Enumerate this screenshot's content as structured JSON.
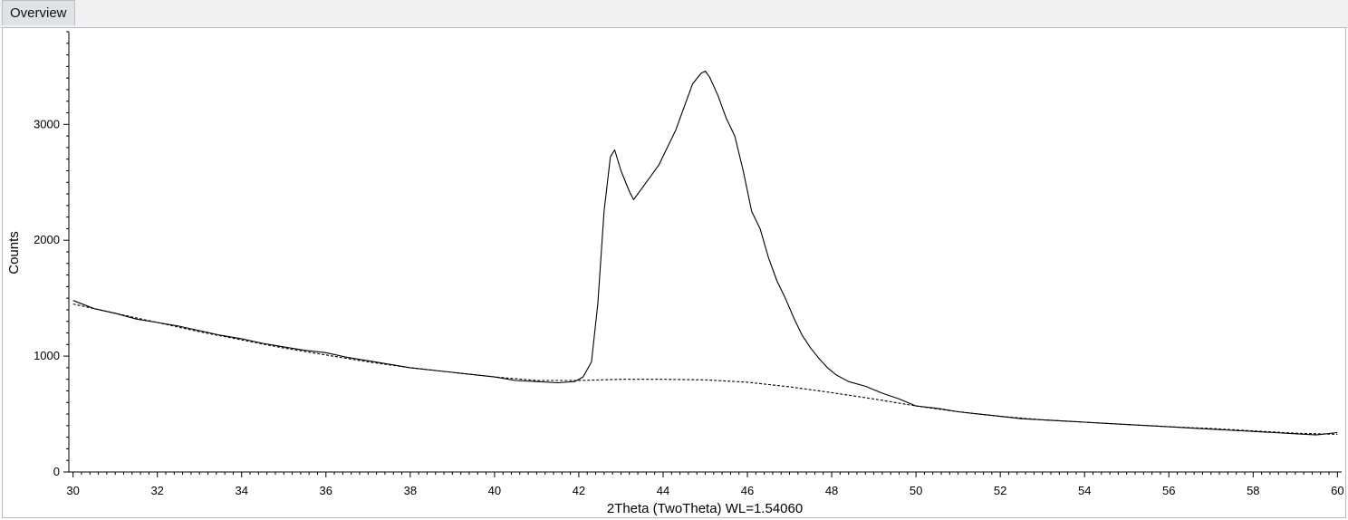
{
  "tabs": [
    {
      "label": "Overview"
    }
  ],
  "chart_data": {
    "type": "line",
    "xlabel": "2Theta (TwoTheta) WL=1.54060",
    "ylabel": "Counts",
    "xlim": [
      29.9,
      60.1
    ],
    "ylim": [
      0,
      3800
    ],
    "x_ticks": [
      30,
      32,
      34,
      36,
      38,
      40,
      42,
      44,
      46,
      48,
      50,
      52,
      54,
      56,
      58,
      60
    ],
    "y_ticks": [
      0,
      1000,
      2000,
      3000
    ],
    "grid": false,
    "series": [
      {
        "style": "solid",
        "color": "#000000",
        "points": [
          [
            30.0,
            1480
          ],
          [
            30.5,
            1410
          ],
          [
            31.0,
            1370
          ],
          [
            31.5,
            1320
          ],
          [
            32.0,
            1290
          ],
          [
            32.5,
            1260
          ],
          [
            33.0,
            1220
          ],
          [
            33.5,
            1180
          ],
          [
            34.0,
            1150
          ],
          [
            34.5,
            1110
          ],
          [
            35.0,
            1080
          ],
          [
            35.5,
            1050
          ],
          [
            36.0,
            1030
          ],
          [
            36.5,
            990
          ],
          [
            37.0,
            960
          ],
          [
            37.5,
            930
          ],
          [
            38.0,
            900
          ],
          [
            38.5,
            880
          ],
          [
            39.0,
            860
          ],
          [
            39.5,
            840
          ],
          [
            40.0,
            820
          ],
          [
            40.5,
            790
          ],
          [
            41.0,
            780
          ],
          [
            41.5,
            770
          ],
          [
            41.9,
            780
          ],
          [
            42.1,
            820
          ],
          [
            42.3,
            950
          ],
          [
            42.45,
            1450
          ],
          [
            42.6,
            2250
          ],
          [
            42.75,
            2720
          ],
          [
            42.85,
            2780
          ],
          [
            43.0,
            2600
          ],
          [
            43.2,
            2420
          ],
          [
            43.3,
            2350
          ],
          [
            43.5,
            2450
          ],
          [
            43.7,
            2550
          ],
          [
            43.9,
            2650
          ],
          [
            44.1,
            2800
          ],
          [
            44.3,
            2950
          ],
          [
            44.5,
            3150
          ],
          [
            44.7,
            3350
          ],
          [
            44.9,
            3440
          ],
          [
            45.0,
            3460
          ],
          [
            45.1,
            3410
          ],
          [
            45.3,
            3250
          ],
          [
            45.5,
            3050
          ],
          [
            45.7,
            2900
          ],
          [
            45.9,
            2600
          ],
          [
            46.1,
            2250
          ],
          [
            46.3,
            2100
          ],
          [
            46.5,
            1850
          ],
          [
            46.7,
            1650
          ],
          [
            46.9,
            1500
          ],
          [
            47.1,
            1330
          ],
          [
            47.3,
            1180
          ],
          [
            47.5,
            1070
          ],
          [
            47.7,
            980
          ],
          [
            47.9,
            900
          ],
          [
            48.1,
            840
          ],
          [
            48.4,
            780
          ],
          [
            48.8,
            740
          ],
          [
            49.2,
            680
          ],
          [
            49.6,
            630
          ],
          [
            50.0,
            570
          ],
          [
            50.5,
            550
          ],
          [
            51.0,
            520
          ],
          [
            51.5,
            500
          ],
          [
            52.0,
            480
          ],
          [
            52.5,
            460
          ],
          [
            53.0,
            450
          ],
          [
            53.5,
            440
          ],
          [
            54.0,
            430
          ],
          [
            54.5,
            420
          ],
          [
            55.0,
            410
          ],
          [
            55.5,
            400
          ],
          [
            56.0,
            390
          ],
          [
            56.5,
            380
          ],
          [
            57.0,
            370
          ],
          [
            57.5,
            360
          ],
          [
            58.0,
            350
          ],
          [
            58.5,
            340
          ],
          [
            59.0,
            330
          ],
          [
            59.5,
            320
          ],
          [
            60.0,
            340
          ]
        ]
      },
      {
        "style": "dashed",
        "color": "#000000",
        "points": [
          [
            30.0,
            1450
          ],
          [
            31.0,
            1370
          ],
          [
            32.0,
            1290
          ],
          [
            33.0,
            1210
          ],
          [
            34.0,
            1140
          ],
          [
            35.0,
            1070
          ],
          [
            36.0,
            1010
          ],
          [
            37.0,
            950
          ],
          [
            38.0,
            900
          ],
          [
            39.0,
            860
          ],
          [
            40.0,
            820
          ],
          [
            41.0,
            790
          ],
          [
            42.0,
            790
          ],
          [
            43.0,
            800
          ],
          [
            44.0,
            800
          ],
          [
            45.0,
            795
          ],
          [
            46.0,
            775
          ],
          [
            47.0,
            735
          ],
          [
            48.0,
            685
          ],
          [
            49.0,
            630
          ],
          [
            50.0,
            570
          ],
          [
            51.0,
            520
          ],
          [
            52.0,
            480
          ],
          [
            53.0,
            450
          ],
          [
            54.0,
            430
          ],
          [
            55.0,
            410
          ],
          [
            56.0,
            390
          ],
          [
            57.0,
            375
          ],
          [
            58.0,
            355
          ],
          [
            59.0,
            335
          ],
          [
            60.0,
            325
          ]
        ]
      }
    ]
  }
}
